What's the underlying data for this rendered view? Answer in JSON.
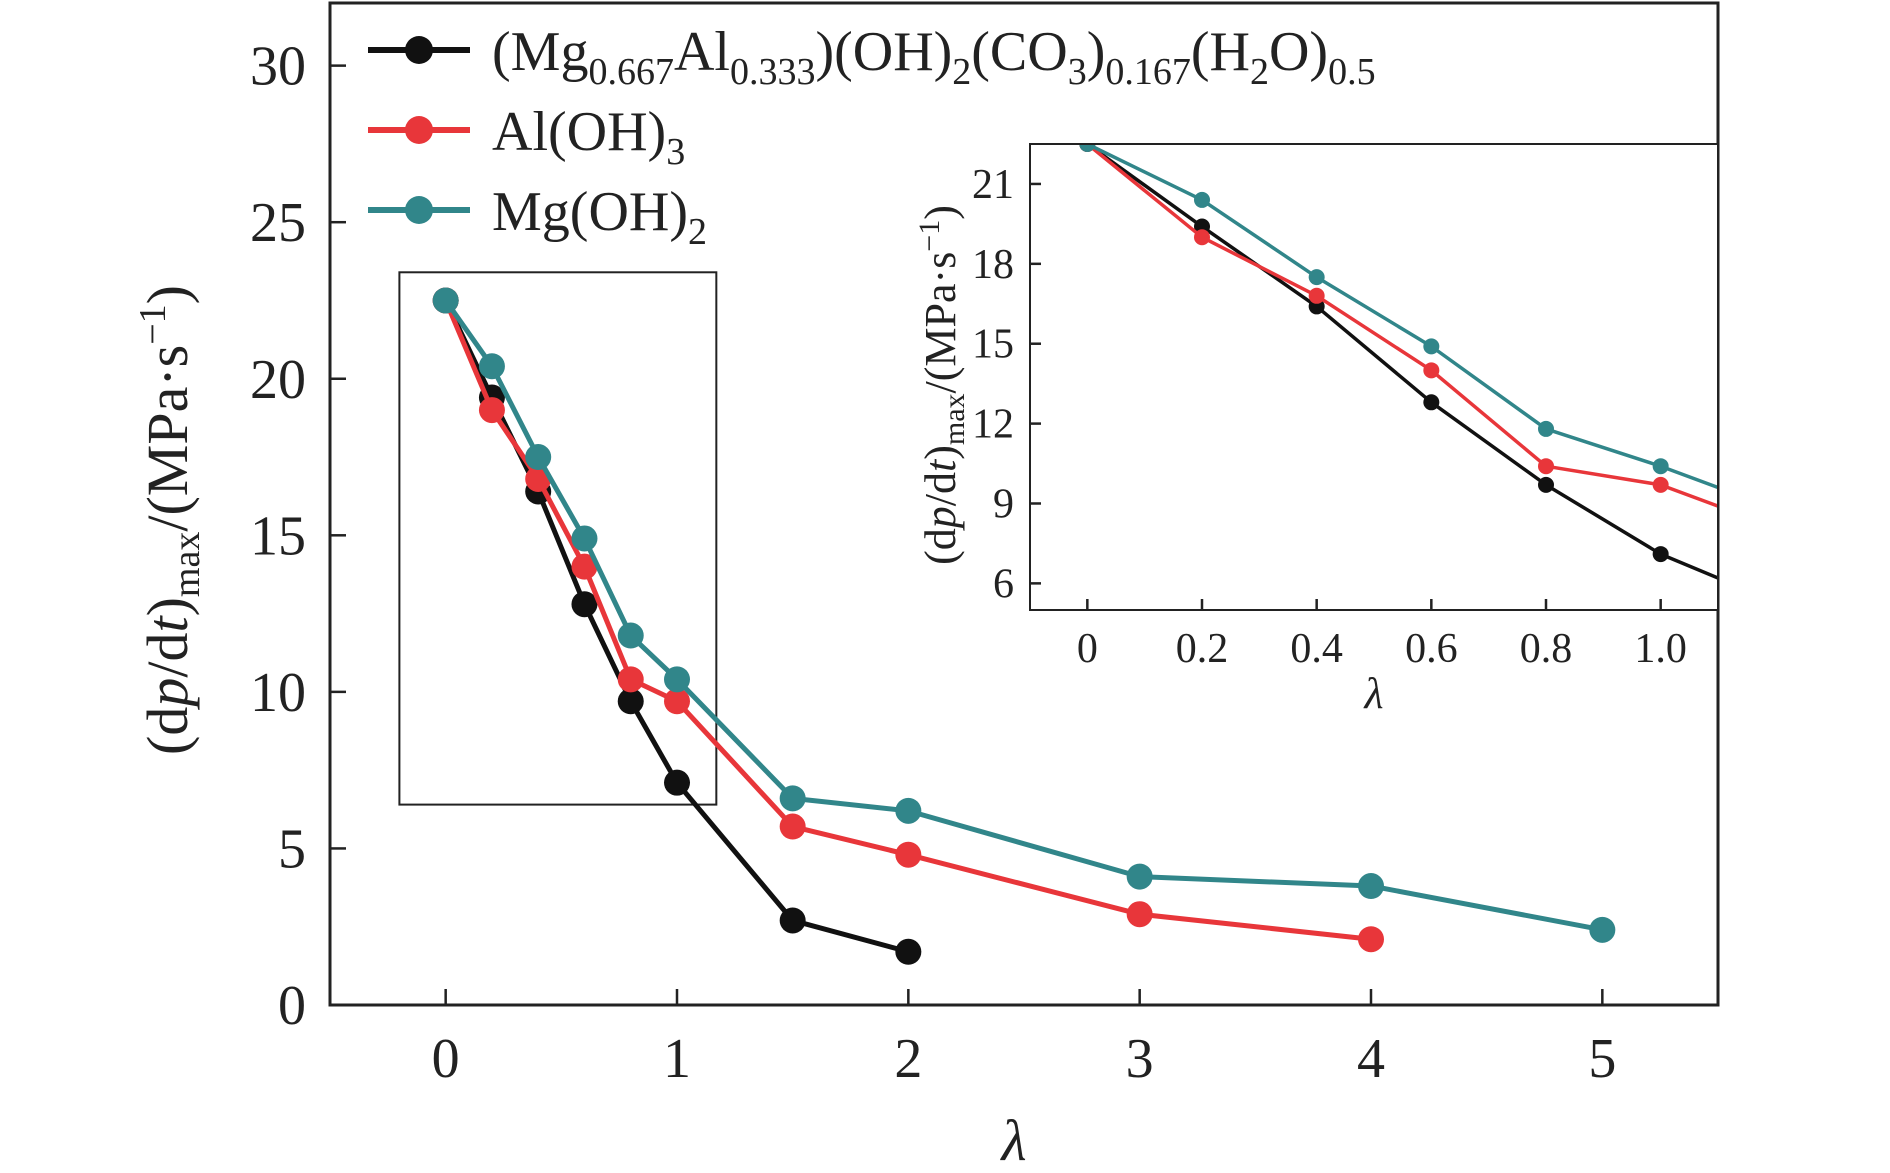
{
  "chart_data": [
    {
      "type": "line",
      "xlabel": "λ",
      "ylabel": "(dp/dt)max/(MPa·s−1)",
      "ylabel_parts": {
        "open": "(d",
        "p": "p",
        "slash": "/d",
        "t": "t",
        "close": ")",
        "sub": "max",
        "unit": "/(MPa·s",
        "sup": "−1",
        "end": ")"
      },
      "xlim": [
        -0.5,
        5.5
      ],
      "ylim": [
        0,
        32
      ],
      "xticks": [
        0,
        1,
        2,
        3,
        4,
        5
      ],
      "xtick_labels": [
        "0",
        "1",
        "2",
        "3",
        "4",
        "5"
      ],
      "yticks": [
        0,
        5,
        10,
        15,
        20,
        25,
        30
      ],
      "ytick_labels": [
        "0",
        "5",
        "10",
        "15",
        "20",
        "25",
        "30"
      ],
      "legend_position": "top-left",
      "series": [
        {
          "name": "(Mg0.667Al0.333)(OH)2(CO3)0.167(H2O)0.5",
          "color": "#111111",
          "x": [
            0,
            0.2,
            0.4,
            0.6,
            0.8,
            1.0,
            1.5,
            2.0
          ],
          "y": [
            22.5,
            19.4,
            16.4,
            12.8,
            9.7,
            7.1,
            2.7,
            1.7
          ]
        },
        {
          "name": "Al(OH)3",
          "color": "#e8363a",
          "x": [
            0,
            0.2,
            0.4,
            0.6,
            0.8,
            1.0,
            1.5,
            2.0,
            3.0,
            4.0
          ],
          "y": [
            22.5,
            19.0,
            16.8,
            14.0,
            10.4,
            9.7,
            5.7,
            4.8,
            2.9,
            2.1
          ]
        },
        {
          "name": "Mg(OH)2",
          "color": "#31868a",
          "x": [
            0,
            0.2,
            0.4,
            0.6,
            0.8,
            1.0,
            1.5,
            2.0,
            3.0,
            4.0,
            5.0
          ],
          "y": [
            22.5,
            20.4,
            17.5,
            14.9,
            11.8,
            10.4,
            6.6,
            6.2,
            4.1,
            3.8,
            2.4
          ]
        }
      ],
      "legend": {
        "entries": [
          {
            "parts": [
              "(Mg",
              "0.667",
              "Al",
              "0.333",
              ")(OH)",
              "2",
              "(CO",
              "3",
              ")",
              "0.167",
              "(H",
              "2",
              "O)",
              "0.5"
            ]
          },
          {
            "parts": [
              "Al(OH)",
              "3"
            ]
          },
          {
            "parts": [
              "Mg(OH)",
              "2"
            ]
          }
        ]
      },
      "zoom_box": {
        "x": [
          -0.2,
          1.17
        ],
        "y": [
          6.4,
          23.4
        ]
      }
    },
    {
      "type": "line",
      "xlabel": "λ",
      "ylabel": "(dp/dt)max/(MPa·s−1)",
      "xlim": [
        -0.1,
        1.1
      ],
      "ylim": [
        5,
        22.5
      ],
      "xticks": [
        0,
        0.2,
        0.4,
        0.6,
        0.8,
        1.0
      ],
      "xtick_labels": [
        "0",
        "0.2",
        "0.4",
        "0.6",
        "0.8",
        "1.0"
      ],
      "yticks": [
        6,
        9,
        12,
        15,
        18,
        21
      ],
      "ytick_labels": [
        "6",
        "9",
        "12",
        "15",
        "18",
        "21"
      ],
      "series": [
        {
          "color": "#111111",
          "x": [
            0,
            0.2,
            0.4,
            0.6,
            0.8,
            1.0,
            1.1
          ],
          "y": [
            22.5,
            19.4,
            16.4,
            12.8,
            9.7,
            7.1,
            6.2
          ]
        },
        {
          "color": "#e8363a",
          "x": [
            0,
            0.2,
            0.4,
            0.6,
            0.8,
            1.0,
            1.1
          ],
          "y": [
            22.5,
            19.0,
            16.8,
            14.0,
            10.4,
            9.7,
            8.9
          ]
        },
        {
          "color": "#31868a",
          "x": [
            0,
            0.2,
            0.4,
            0.6,
            0.8,
            1.0,
            1.1
          ],
          "y": [
            22.5,
            20.4,
            17.5,
            14.9,
            11.8,
            10.4,
            9.6
          ]
        }
      ],
      "marker_count": 6
    }
  ]
}
